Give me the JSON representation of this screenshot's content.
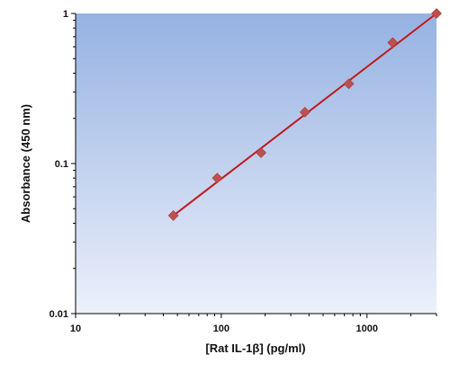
{
  "chart_data": {
    "type": "scatter",
    "xlabel": "[Rat IL-1β] (pg/ml)",
    "ylabel": "Absorbance (450 nm)",
    "x_scale": "log",
    "y_scale": "log",
    "xlim": [
      10,
      3000
    ],
    "ylim": [
      0.01,
      1
    ],
    "x_ticks": [
      "10",
      "100",
      "1000"
    ],
    "y_ticks": [
      "0.01",
      "0.1",
      "1"
    ],
    "grid": false,
    "colors": {
      "plot_bg_top": "#96b2e2",
      "plot_bg_bottom": "#ecf0fa",
      "marker": "#c0504d",
      "trendline": "#c0191c"
    },
    "series": [
      {
        "marker": "diamond",
        "x": [
          46.9,
          93.8,
          187.5,
          375,
          750,
          1500,
          3000
        ],
        "y": [
          0.045,
          0.08,
          0.118,
          0.22,
          0.34,
          0.64,
          1.0
        ]
      }
    ],
    "trendline": {
      "type": "power",
      "x": [
        46.9,
        3000
      ],
      "y": [
        0.045,
        1.0
      ]
    }
  }
}
